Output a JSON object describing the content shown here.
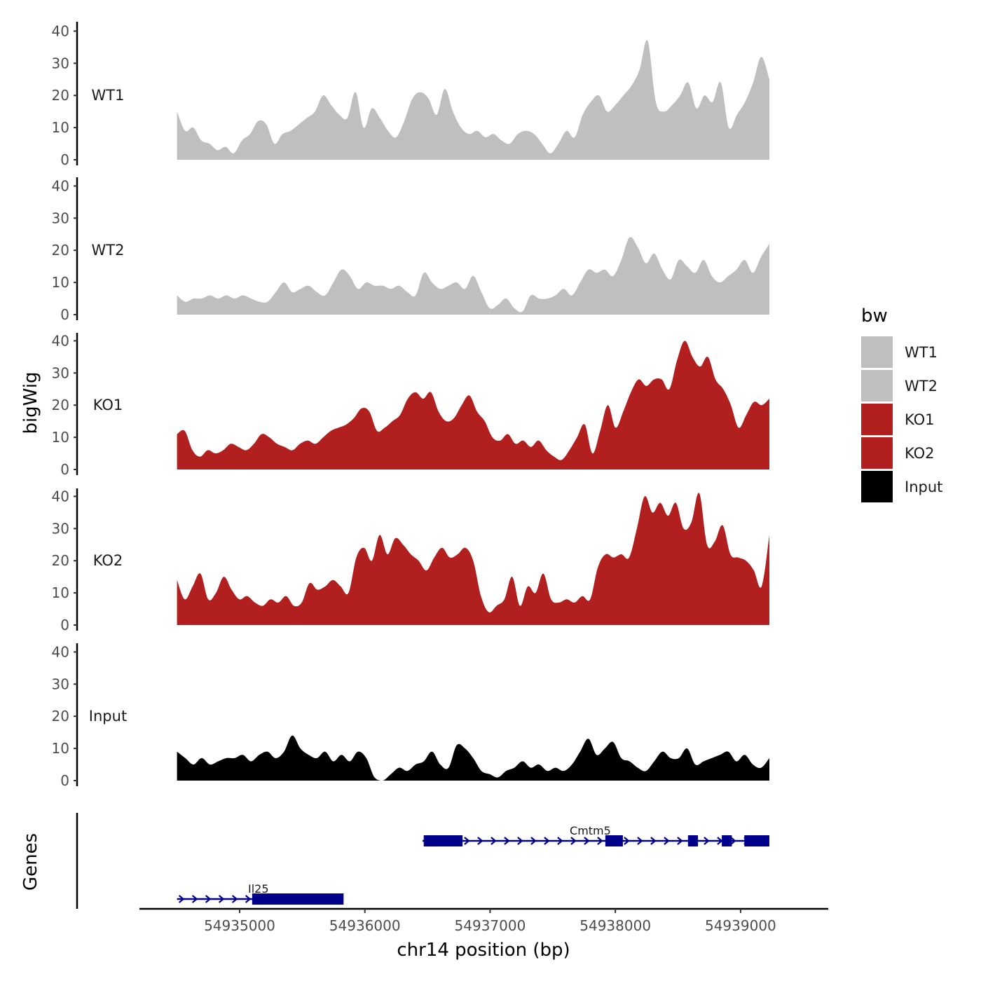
{
  "chart_data": {
    "type": "area",
    "ylabel": "bigWig",
    "genes_label": "Genes",
    "xlabel": "chr14 position (bp)",
    "xlim": [
      54934200,
      54939700
    ],
    "data_x_range": [
      54934500,
      54939230
    ],
    "x_ticks": [
      54935000,
      54936000,
      54937000,
      54938000,
      54939000
    ],
    "x_tick_labels": [
      "54935000",
      "54936000",
      "54937000",
      "54938000",
      "54939000"
    ],
    "ylim": [
      0,
      42
    ],
    "y_ticks": [
      0,
      10,
      20,
      30,
      40
    ],
    "y_tick_labels": [
      "0",
      "10",
      "20",
      "30",
      "40"
    ],
    "legend": {
      "title": "bw",
      "entries": [
        {
          "label": "WT1",
          "color": "#bfbfbf"
        },
        {
          "label": "WT2",
          "color": "#bfbfbf"
        },
        {
          "label": "KO1",
          "color": "#b21f1f"
        },
        {
          "label": "KO2",
          "color": "#b21f1f"
        },
        {
          "label": "Input",
          "color": "#000000"
        }
      ]
    },
    "series": [
      {
        "name": "WT1",
        "color": "#bfbfbf",
        "values": [
          15,
          9,
          10,
          6,
          5,
          3,
          4,
          2,
          6,
          8,
          12,
          11,
          5,
          8,
          9,
          11,
          13,
          15,
          20,
          17,
          14,
          13,
          21,
          10,
          16,
          13,
          9,
          7,
          12,
          19,
          21,
          19,
          14,
          22,
          15,
          10,
          8,
          9,
          7,
          8,
          6,
          5,
          8,
          9,
          8,
          5,
          2,
          5,
          9,
          7,
          14,
          18,
          20,
          15,
          17,
          20,
          23,
          28,
          37,
          18,
          15,
          17,
          20,
          24,
          16,
          20,
          18,
          24,
          10,
          14,
          18,
          24,
          32,
          25
        ]
      },
      {
        "name": "WT2",
        "color": "#bfbfbf",
        "values": [
          6,
          4,
          5,
          5,
          6,
          5,
          6,
          5,
          6,
          5,
          4,
          4,
          7,
          10,
          7,
          8,
          9,
          7,
          6,
          10,
          14,
          12,
          8,
          10,
          9,
          9,
          8,
          9,
          7,
          6,
          13,
          10,
          8,
          9,
          10,
          8,
          12,
          7,
          2,
          3,
          5,
          2,
          1,
          6,
          5,
          5,
          6,
          8,
          6,
          10,
          14,
          13,
          14,
          12,
          17,
          24,
          21,
          16,
          19,
          14,
          11,
          17,
          15,
          13,
          17,
          12,
          10,
          12,
          14,
          17,
          13,
          18,
          22
        ]
      },
      {
        "name": "KO1",
        "color": "#b21f1f",
        "values": [
          11,
          12,
          6,
          4,
          6,
          5,
          6,
          8,
          7,
          6,
          8,
          11,
          10,
          8,
          7,
          6,
          8,
          9,
          8,
          10,
          12,
          13,
          14,
          16,
          19,
          18,
          12,
          13,
          15,
          17,
          22,
          24,
          22,
          24,
          18,
          15,
          16,
          20,
          23,
          18,
          15,
          10,
          9,
          11,
          8,
          9,
          7,
          9,
          6,
          4,
          3,
          6,
          10,
          14,
          5,
          12,
          20,
          13,
          18,
          24,
          28,
          26,
          28,
          28,
          25,
          34,
          40,
          35,
          32,
          35,
          28,
          25,
          20,
          13,
          17,
          21,
          20,
          22
        ]
      },
      {
        "name": "KO2",
        "color": "#b21f1f",
        "values": [
          14,
          8,
          12,
          16,
          8,
          10,
          15,
          11,
          8,
          9,
          7,
          6,
          8,
          7,
          9,
          6,
          7,
          13,
          11,
          12,
          14,
          12,
          10,
          21,
          24,
          20,
          28,
          22,
          27,
          25,
          22,
          20,
          17,
          21,
          24,
          21,
          22,
          24,
          20,
          9,
          4,
          6,
          8,
          15,
          6,
          12,
          10,
          16,
          8,
          7,
          8,
          7,
          9,
          8,
          18,
          22,
          21,
          22,
          21,
          30,
          40,
          35,
          38,
          34,
          38,
          30,
          32,
          41,
          25,
          26,
          31,
          22,
          21,
          20,
          17,
          12,
          28
        ]
      },
      {
        "name": "Input",
        "color": "#000000",
        "values": [
          9,
          7,
          5,
          7,
          5,
          6,
          7,
          7,
          8,
          6,
          8,
          9,
          7,
          9,
          14,
          10,
          8,
          7,
          9,
          6,
          8,
          6,
          9,
          7,
          1,
          0,
          2,
          4,
          3,
          5,
          6,
          9,
          5,
          4,
          11,
          10,
          7,
          3,
          2,
          1,
          3,
          4,
          6,
          4,
          5,
          3,
          4,
          3,
          5,
          9,
          13,
          8,
          10,
          12,
          7,
          6,
          4,
          3,
          6,
          9,
          7,
          7,
          10,
          5,
          6,
          7,
          8,
          9,
          6,
          8,
          5,
          4,
          7
        ]
      }
    ],
    "genes": [
      {
        "name": "Cmtm5",
        "start": 54936460,
        "end": 54939230,
        "strand": "+",
        "exons": [
          [
            54936470,
            54936780
          ],
          [
            54937920,
            54938060
          ],
          [
            54938580,
            54938660
          ],
          [
            54938850,
            54938930
          ],
          [
            54939030,
            54939230
          ]
        ]
      },
      {
        "name": "Il25",
        "start": 54934500,
        "end": 54935830,
        "strand": "+",
        "exons": [
          [
            54935100,
            54935830
          ]
        ]
      }
    ]
  }
}
